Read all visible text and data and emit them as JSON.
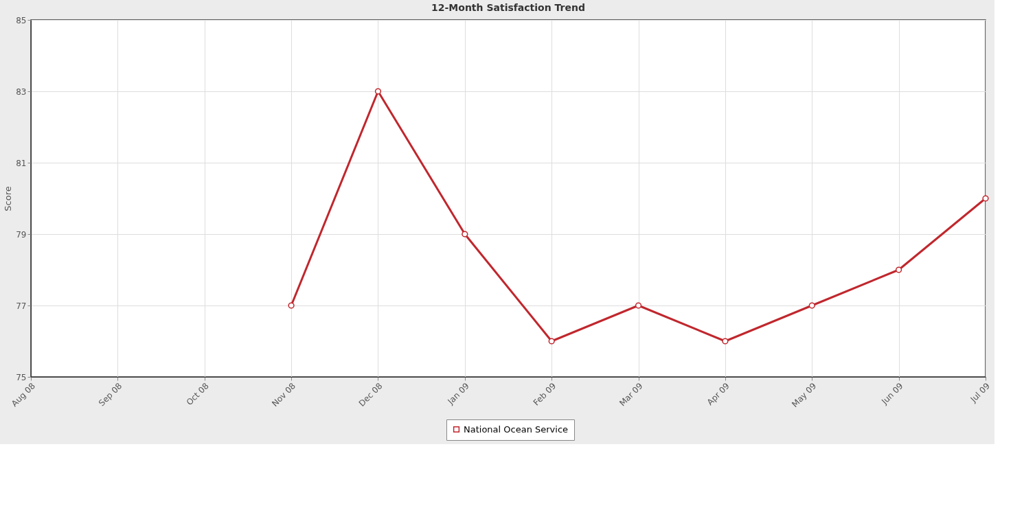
{
  "chart_data": {
    "type": "line",
    "title": "12-Month Satisfaction Trend",
    "ylabel": "Score",
    "categories": [
      "Aug 08",
      "Sep 08",
      "Oct 08",
      "Nov 08",
      "Dec 08",
      "Jan 09",
      "Feb 09",
      "Mar 09",
      "Apr 09",
      "May 09",
      "Jun 09",
      "Jul 09"
    ],
    "series": [
      {
        "name": "National Ocean Service",
        "color": "#c0272d",
        "values": [
          null,
          null,
          null,
          77,
          83,
          79,
          76,
          77,
          76,
          77,
          78,
          80
        ]
      }
    ],
    "ylim": [
      75,
      85
    ],
    "yticks": [
      75,
      77,
      79,
      81,
      83,
      85
    ],
    "grid": true,
    "legend": "bottom",
    "marker": "circle",
    "line_style": "solid"
  }
}
